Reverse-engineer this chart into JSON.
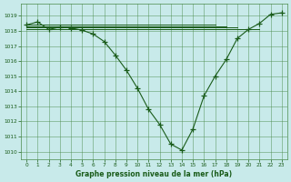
{
  "title": "Graphe pression niveau de la mer (hPa)",
  "bg_color": "#c8eaea",
  "grid_color": "#4a8a4a",
  "line_color": "#1a5c1a",
  "xlim": [
    -0.5,
    23.5
  ],
  "ylim": [
    1009.5,
    1019.8
  ],
  "yticks": [
    1010,
    1011,
    1012,
    1013,
    1014,
    1015,
    1016,
    1017,
    1018,
    1019
  ],
  "xticks": [
    0,
    1,
    2,
    3,
    4,
    5,
    6,
    7,
    8,
    9,
    10,
    11,
    12,
    13,
    14,
    15,
    16,
    17,
    18,
    19,
    20,
    21,
    22,
    23
  ],
  "main_curve": {
    "x": [
      0,
      1,
      2,
      3,
      4,
      5,
      6,
      7,
      8,
      9,
      10,
      11,
      12,
      13,
      14,
      15,
      16,
      17,
      18,
      19,
      20,
      21,
      22,
      23
    ],
    "y": [
      1018.4,
      1018.6,
      1018.1,
      1018.25,
      1018.2,
      1018.05,
      1017.8,
      1017.3,
      1016.4,
      1015.4,
      1014.2,
      1012.8,
      1011.8,
      1010.5,
      1010.1,
      1011.5,
      1013.7,
      1015.0,
      1016.1,
      1017.5,
      1018.1,
      1018.5,
      1019.1,
      1019.2
    ]
  },
  "flat_lines": [
    {
      "x": [
        0,
        17
      ],
      "y": [
        1018.4,
        1018.4
      ]
    },
    {
      "x": [
        0,
        18
      ],
      "y": [
        1018.3,
        1018.3
      ]
    },
    {
      "x": [
        0,
        19
      ],
      "y": [
        1018.25,
        1018.25
      ]
    },
    {
      "x": [
        0,
        21
      ],
      "y": [
        1018.15,
        1018.15
      ]
    }
  ]
}
